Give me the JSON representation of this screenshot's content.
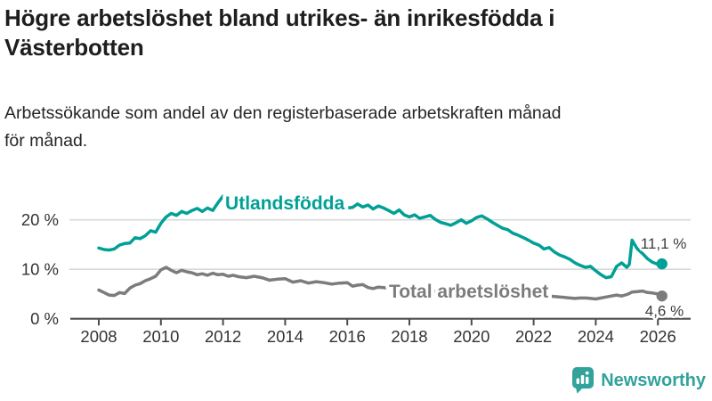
{
  "header": {
    "title": "Högre arbetslöshet bland utrikes- än inrikesfödda i\nVästerbotten",
    "subtitle": "Arbetssökande som andel av den registerbaserade arbetskraften månad\nför månad."
  },
  "chart_data": {
    "type": "line",
    "title": "Högre arbetslöshet bland utrikes- än inrikesfödda i Västerbotten",
    "subtitle": "Arbetssökande som andel av den registerbaserade arbetskraften månad för månad.",
    "xlabel": "",
    "ylabel": "",
    "xlim": [
      2007.85,
      2027.0
    ],
    "ylim": [
      0,
      27
    ],
    "grid": "horizontal-y",
    "legend_position": "inline-labels-on-lines",
    "x_ticks": [
      2008,
      2010,
      2012,
      2014,
      2016,
      2018,
      2020,
      2022,
      2024,
      2026
    ],
    "y_ticks": [
      {
        "value": 0,
        "label": "0 %"
      },
      {
        "value": 10,
        "label": "10 %"
      },
      {
        "value": 20,
        "label": "20 %"
      }
    ],
    "colors": {
      "accent_teal": "#00a096",
      "series_gray": "#7c7c7c",
      "gridline": "#d8d8d8",
      "axis": "#4d4d4d",
      "tick_text": "#333333",
      "annotation_text": "#3d3d3d"
    },
    "x": [
      2008.0,
      2008.17,
      2008.33,
      2008.5,
      2008.67,
      2008.83,
      2009.0,
      2009.17,
      2009.33,
      2009.5,
      2009.67,
      2009.83,
      2010.0,
      2010.17,
      2010.33,
      2010.5,
      2010.67,
      2010.83,
      2011.0,
      2011.17,
      2011.33,
      2011.5,
      2011.67,
      2011.83,
      2012.0,
      2012.17,
      2012.33,
      2012.5,
      2012.75,
      2013.0,
      2013.25,
      2013.5,
      2013.75,
      2014.0,
      2014.25,
      2014.5,
      2014.75,
      2015.0,
      2015.25,
      2015.5,
      2015.75,
      2016.0,
      2016.17,
      2016.33,
      2016.5,
      2016.67,
      2016.83,
      2017.0,
      2017.17,
      2017.33,
      2017.5,
      2017.67,
      2017.83,
      2018.0,
      2018.17,
      2018.33,
      2018.5,
      2018.67,
      2018.83,
      2019.0,
      2019.17,
      2019.33,
      2019.5,
      2019.67,
      2019.83,
      2020.0,
      2020.17,
      2020.33,
      2020.5,
      2020.67,
      2020.83,
      2021.0,
      2021.17,
      2021.33,
      2021.5,
      2021.67,
      2021.83,
      2022.0,
      2022.17,
      2022.33,
      2022.5,
      2022.67,
      2022.83,
      2023.0,
      2023.17,
      2023.33,
      2023.5,
      2023.67,
      2023.83,
      2024.0,
      2024.17,
      2024.33,
      2024.5,
      2024.67,
      2024.83,
      2025.0,
      2025.08,
      2025.17,
      2025.33,
      2025.5,
      2025.67,
      2025.83,
      2026.0,
      2026.13
    ],
    "series": [
      {
        "name": "Utlandsfödda",
        "color": "#00a096",
        "label_anchor": {
          "x": 2012.07,
          "y": 22.1
        },
        "end_label": "11,1 %",
        "end_value": 11.1,
        "values": [
          14.3,
          14.0,
          13.9,
          14.1,
          14.9,
          15.2,
          15.3,
          16.4,
          16.2,
          16.8,
          17.8,
          17.5,
          19.3,
          20.6,
          21.3,
          20.9,
          21.7,
          21.3,
          21.9,
          22.3,
          21.7,
          22.4,
          21.9,
          23.4,
          24.8,
          24.3,
          23.9,
          23.6,
          23.3,
          23.5,
          23.1,
          23.3,
          22.9,
          23.1,
          22.7,
          22.9,
          22.5,
          22.7,
          22.4,
          22.6,
          22.3,
          22.4,
          22.5,
          23.2,
          22.6,
          23.0,
          22.2,
          22.8,
          22.4,
          21.9,
          21.3,
          22.0,
          21.0,
          20.6,
          21.0,
          20.3,
          20.6,
          20.9,
          20.1,
          19.5,
          19.2,
          18.9,
          19.4,
          20.0,
          19.3,
          19.8,
          20.5,
          20.8,
          20.2,
          19.5,
          18.9,
          18.3,
          18.0,
          17.3,
          16.9,
          16.4,
          15.9,
          15.3,
          14.9,
          14.1,
          14.4,
          13.5,
          12.9,
          12.5,
          12.0,
          11.3,
          10.8,
          10.4,
          10.6,
          9.7,
          8.9,
          8.3,
          8.5,
          10.6,
          11.3,
          10.4,
          11.0,
          15.9,
          14.2,
          13.2,
          12.1,
          11.4,
          11.0,
          11.1
        ]
      },
      {
        "name": "Total arbetslöshet",
        "color": "#7c7c7c",
        "label_anchor": {
          "x": 2017.34,
          "y": 4.27
        },
        "end_label": "4,6 %",
        "end_value": 4.6,
        "values": [
          5.8,
          5.3,
          4.8,
          4.7,
          5.3,
          5.1,
          6.2,
          6.8,
          7.1,
          7.7,
          8.1,
          8.6,
          9.9,
          10.4,
          9.8,
          9.3,
          9.8,
          9.5,
          9.3,
          8.9,
          9.1,
          8.8,
          9.2,
          8.9,
          9.0,
          8.6,
          8.8,
          8.5,
          8.3,
          8.6,
          8.3,
          7.8,
          8.0,
          8.1,
          7.4,
          7.7,
          7.2,
          7.5,
          7.3,
          7.0,
          7.2,
          7.3,
          6.6,
          6.8,
          6.9,
          6.3,
          6.1,
          6.4,
          6.3,
          6.2,
          6.1,
          6.0,
          6.0,
          5.9,
          5.8,
          5.7,
          5.7,
          5.6,
          5.6,
          5.6,
          5.5,
          5.5,
          5.5,
          5.6,
          5.6,
          5.8,
          6.3,
          6.7,
          6.6,
          6.4,
          6.2,
          6.0,
          5.8,
          5.6,
          5.4,
          5.2,
          5.1,
          4.9,
          4.8,
          4.7,
          4.6,
          4.5,
          4.4,
          4.3,
          4.2,
          4.1,
          4.2,
          4.2,
          4.1,
          4.0,
          4.2,
          4.4,
          4.6,
          4.8,
          4.6,
          4.9,
          5.1,
          5.4,
          5.5,
          5.6,
          5.3,
          5.2,
          5.0,
          4.6
        ]
      }
    ]
  },
  "branding": {
    "logo_text": "Newsworthy"
  }
}
